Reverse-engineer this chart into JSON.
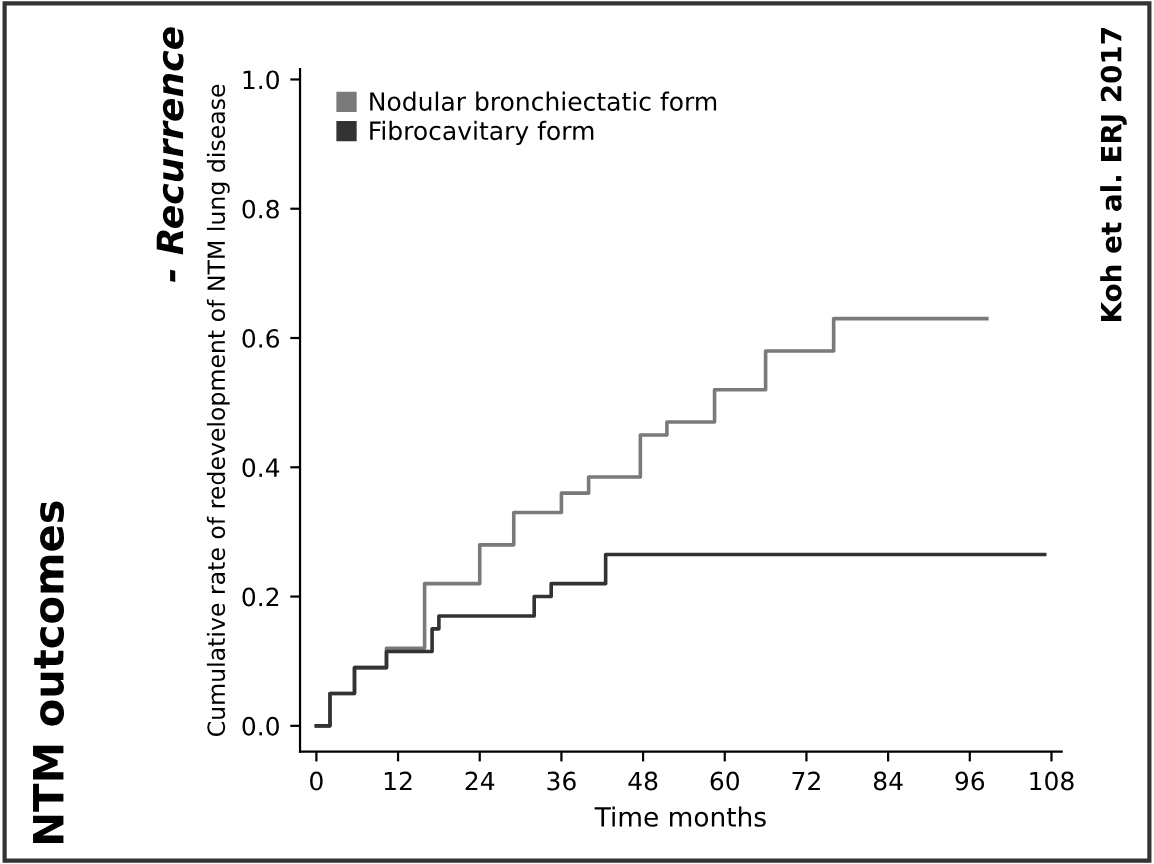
{
  "chart_data": {
    "type": "step",
    "title": "NTM outcomes",
    "subtitle": "- Recurrence",
    "xlabel": "Time months",
    "ylabel": "Cumulative rate of redevelopment of NTM lung disease",
    "annotations": [
      "Koh et al. ERJ 2017"
    ],
    "series": [
      {
        "name": "Nodular bronchiectatic form",
        "color": "#7a7a7a",
        "x": [
          0,
          2,
          5.6,
          10.3,
          15.9,
          24,
          29,
          36,
          40,
          47.6,
          51.5,
          58.5,
          66,
          76,
          98.5
        ],
        "values": [
          0,
          0.05,
          0.09,
          0.12,
          0.22,
          0.28,
          0.33,
          0.36,
          0.385,
          0.45,
          0.47,
          0.52,
          0.58,
          0.63,
          0.63
        ]
      },
      {
        "name": "Fibrocavitary form",
        "color": "#333333",
        "x": [
          0,
          2,
          5.6,
          10.3,
          17,
          18,
          32,
          34.5,
          42.5,
          107
        ],
        "values": [
          0,
          0.05,
          0.09,
          0.115,
          0.15,
          0.17,
          0.2,
          0.22,
          0.265,
          0.265
        ]
      }
    ],
    "xlim": [
      -2.4,
      109.5
    ],
    "ylim": [
      -0.04,
      1.016
    ],
    "xticks": [
      0,
      12,
      24,
      36,
      48,
      60,
      72,
      84,
      96,
      108
    ],
    "yticks": [
      {
        "value": 0,
        "label": "0.0"
      },
      {
        "value": 0.2,
        "label": "0.2"
      },
      {
        "value": 0.4,
        "label": "0.4"
      },
      {
        "value": 0.6,
        "label": "0.6"
      },
      {
        "value": 0.8,
        "label": "0.8"
      },
      {
        "value": 1,
        "label": "1.0"
      }
    ],
    "grid": false,
    "legend": "top left"
  }
}
